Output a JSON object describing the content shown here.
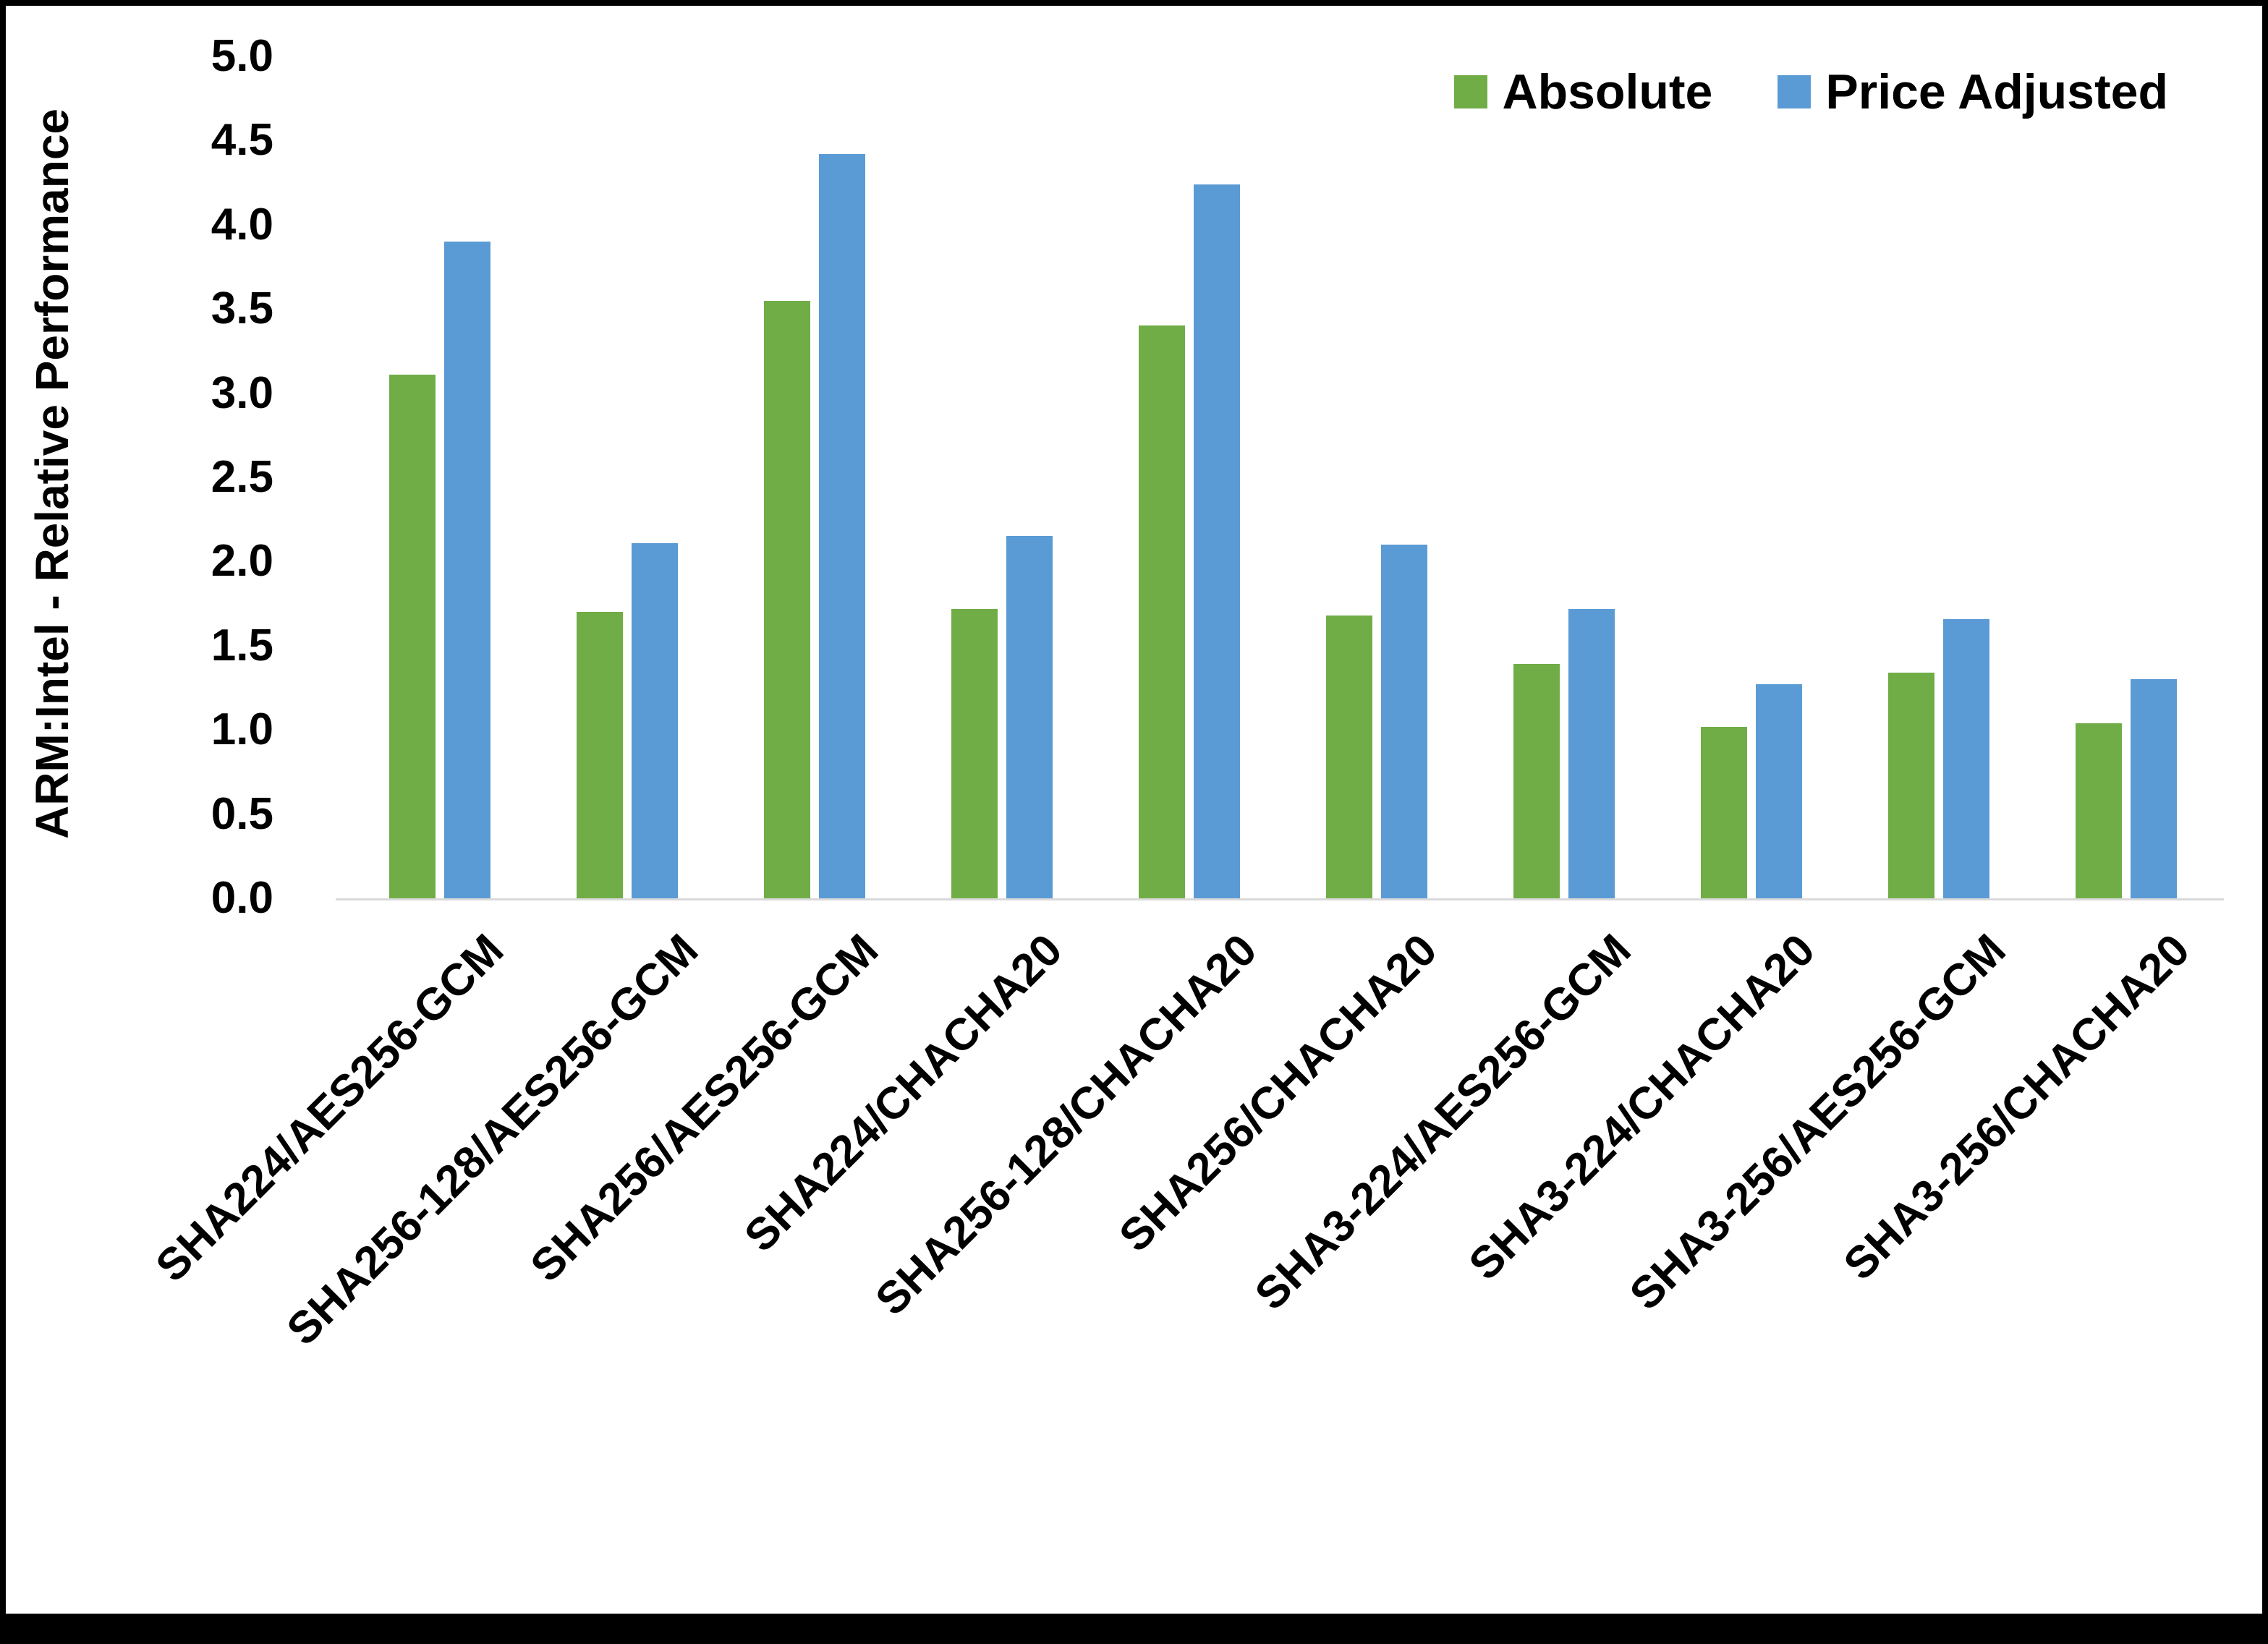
{
  "chart_data": {
    "type": "bar",
    "title": "",
    "xlabel": "",
    "ylabel": "ARM:Intel - Relative Performance",
    "ylim": [
      0,
      5
    ],
    "ytick_step": 0.5,
    "grid": false,
    "legend_position": "top-right",
    "categories": [
      "SHA224/AES256-GCM",
      "SHA256-128/AES256-GCM",
      "SHA256/AES256-GCM",
      "SHA224/CHACHA20",
      "SHA256-128/CHACHA20",
      "SHA256/CHACHA20",
      "SHA3-224/AES256-GCM",
      "SHA3-224/CHACHA20",
      "SHA3-256/AES256-GCM",
      "SHA3-256/CHACHA20"
    ],
    "series": [
      {
        "name": "Absolute",
        "color": "#70AD47",
        "values": [
          3.11,
          1.7,
          3.55,
          1.72,
          3.4,
          1.68,
          1.39,
          1.02,
          1.34,
          1.04
        ]
      },
      {
        "name": "Price Adjusted",
        "color": "#5B9BD5",
        "values": [
          3.9,
          2.11,
          4.42,
          2.15,
          4.24,
          2.1,
          1.72,
          1.27,
          1.66,
          1.3
        ]
      }
    ]
  }
}
